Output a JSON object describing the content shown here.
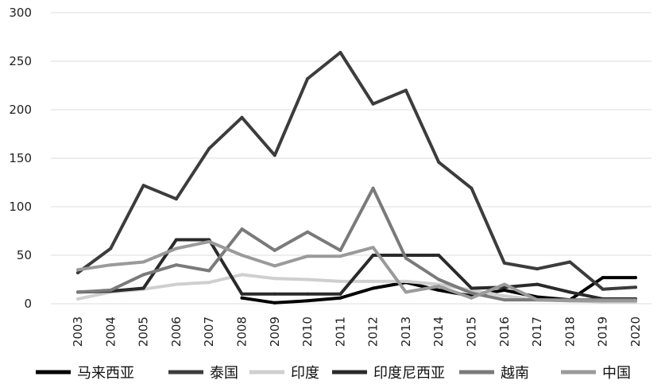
{
  "chart_data": {
    "type": "line",
    "x": [
      "2003",
      "2004",
      "2005",
      "2006",
      "2007",
      "2008",
      "2009",
      "2010",
      "2011",
      "2012",
      "2013",
      "2014",
      "2015",
      "2016",
      "2017",
      "2018",
      "2019",
      "2020"
    ],
    "ylim": [
      0,
      300
    ],
    "yticks": [
      0,
      50,
      100,
      150,
      200,
      250,
      300
    ],
    "grid": true,
    "legend_position": "bottom",
    "series": [
      {
        "name": "马来西亚",
        "color": "#000000",
        "values": [
          null,
          null,
          null,
          null,
          null,
          6,
          1,
          3,
          6,
          16,
          22,
          14,
          8,
          14,
          7,
          4,
          27,
          27
        ]
      },
      {
        "name": "泰国",
        "color": "#3c3c3c",
        "values": [
          32,
          57,
          122,
          108,
          160,
          192,
          153,
          232,
          259,
          206,
          220,
          146,
          119,
          42,
          36,
          43,
          15,
          17
        ]
      },
      {
        "name": "印度",
        "color": "#cfcfcf",
        "values": [
          5,
          12,
          15,
          20,
          22,
          30,
          26,
          25,
          23,
          23,
          23,
          20,
          14,
          8,
          4,
          3,
          2,
          2
        ]
      },
      {
        "name": "印度尼西亚",
        "color": "#2a2a2a",
        "values": [
          12,
          13,
          16,
          66,
          66,
          10,
          10,
          10,
          10,
          50,
          50,
          50,
          16,
          17,
          20,
          12,
          5,
          5
        ]
      },
      {
        "name": "越南",
        "color": "#7a7a7a",
        "values": [
          12,
          14,
          30,
          40,
          34,
          77,
          55,
          74,
          55,
          119,
          47,
          25,
          11,
          4,
          4,
          4,
          4,
          4
        ]
      },
      {
        "name": "中国",
        "color": "#9a9a9a",
        "values": [
          35,
          40,
          43,
          57,
          64,
          50,
          39,
          49,
          49,
          58,
          12,
          18,
          6,
          20,
          4,
          3,
          3,
          3
        ]
      }
    ]
  }
}
